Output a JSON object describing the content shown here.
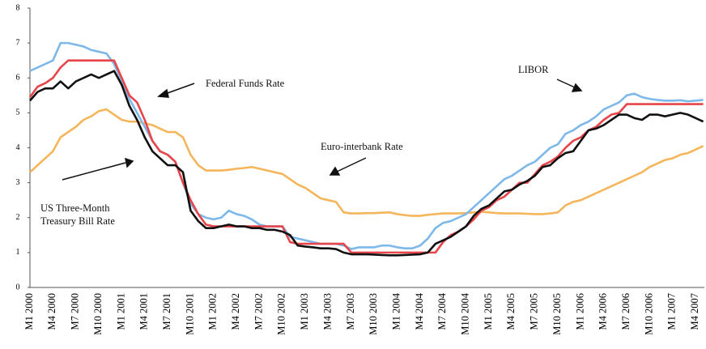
{
  "chart_data": {
    "type": "line",
    "categories": [
      "M1 2000",
      null,
      null,
      "M4 2000",
      null,
      null,
      "M7 2000",
      null,
      null,
      "M10 2000",
      null,
      null,
      "M1 2001",
      null,
      null,
      "M4 2001",
      null,
      null,
      "M7 2001",
      null,
      null,
      "M10 2001",
      null,
      null,
      "M1 2002",
      null,
      null,
      "M4 2002",
      null,
      null,
      "M7 2002",
      null,
      null,
      "M10 2002",
      null,
      null,
      "M1 2003",
      null,
      null,
      "M4 2003",
      null,
      null,
      "M7 2003",
      null,
      null,
      "M10 2003",
      null,
      null,
      "M1 2004",
      null,
      null,
      "M4 2004",
      null,
      null,
      "M7 2004",
      null,
      null,
      "M10 2004",
      null,
      null,
      "M1 2005",
      null,
      null,
      "M4 2005",
      null,
      null,
      "M7 2005",
      null,
      null,
      "M10 2005",
      null,
      null,
      "M1 2006",
      null,
      null,
      "M4 2006",
      null,
      null,
      "M7 2006",
      null,
      null,
      "M10 2006",
      null,
      null,
      "M1 2007",
      null,
      null,
      "M4 2007",
      null
    ],
    "series": [
      {
        "name": "Federal Funds Rate",
        "color": "#e8454a",
        "values": [
          5.45,
          5.75,
          5.85,
          6.0,
          6.3,
          6.5,
          6.5,
          6.5,
          6.5,
          6.5,
          6.5,
          6.5,
          6.0,
          5.5,
          5.3,
          4.8,
          4.2,
          3.9,
          3.8,
          3.6,
          3.0,
          2.5,
          2.1,
          1.8,
          1.75,
          1.75,
          1.75,
          1.75,
          1.75,
          1.75,
          1.75,
          1.75,
          1.75,
          1.75,
          1.3,
          1.25,
          1.25,
          1.25,
          1.25,
          1.25,
          1.25,
          1.25,
          1.0,
          1.0,
          1.0,
          1.0,
          1.0,
          1.0,
          1.0,
          1.0,
          1.0,
          1.0,
          1.0,
          1.0,
          1.3,
          1.5,
          1.6,
          1.75,
          1.95,
          2.2,
          2.3,
          2.5,
          2.6,
          2.8,
          3.0,
          3.0,
          3.25,
          3.5,
          3.6,
          3.75,
          4.0,
          4.2,
          4.3,
          4.5,
          4.6,
          4.8,
          4.95,
          5.0,
          5.25,
          5.25,
          5.25,
          5.25,
          5.25,
          5.25,
          5.25,
          5.25,
          5.25,
          5.25,
          5.25
        ]
      },
      {
        "name": "Euro-interbank Rate",
        "color": "#f5b55a",
        "values": [
          3.3,
          3.5,
          3.7,
          3.9,
          4.3,
          4.45,
          4.6,
          4.8,
          4.9,
          5.05,
          5.1,
          4.95,
          4.8,
          4.75,
          4.75,
          4.7,
          4.65,
          4.55,
          4.45,
          4.45,
          4.3,
          3.8,
          3.5,
          3.35,
          3.35,
          3.35,
          3.37,
          3.4,
          3.42,
          3.45,
          3.4,
          3.35,
          3.3,
          3.25,
          3.1,
          2.95,
          2.85,
          2.7,
          2.55,
          2.5,
          2.45,
          2.15,
          2.12,
          2.12,
          2.13,
          2.13,
          2.14,
          2.15,
          2.1,
          2.07,
          2.05,
          2.05,
          2.08,
          2.1,
          2.12,
          2.12,
          2.12,
          2.13,
          2.15,
          2.17,
          2.15,
          2.13,
          2.12,
          2.12,
          2.12,
          2.11,
          2.1,
          2.1,
          2.12,
          2.15,
          2.35,
          2.45,
          2.5,
          2.6,
          2.7,
          2.8,
          2.9,
          3.0,
          3.1,
          3.2,
          3.3,
          3.45,
          3.55,
          3.65,
          3.7,
          3.8,
          3.85,
          3.95,
          4.05
        ]
      },
      {
        "name": "LIBOR",
        "color": "#7db8ea",
        "values": [
          6.2,
          6.3,
          6.4,
          6.5,
          7.0,
          7.0,
          6.95,
          6.9,
          6.8,
          6.75,
          6.7,
          6.4,
          5.9,
          5.4,
          5.0,
          4.6,
          4.2,
          3.9,
          3.8,
          3.6,
          3.0,
          2.4,
          2.1,
          2.0,
          1.95,
          2.0,
          2.2,
          2.1,
          2.05,
          1.95,
          1.8,
          1.75,
          1.75,
          1.75,
          1.45,
          1.4,
          1.35,
          1.3,
          1.25,
          1.25,
          1.25,
          1.2,
          1.1,
          1.15,
          1.15,
          1.15,
          1.2,
          1.2,
          1.15,
          1.12,
          1.12,
          1.2,
          1.4,
          1.7,
          1.85,
          1.9,
          2.0,
          2.1,
          2.3,
          2.5,
          2.7,
          2.9,
          3.1,
          3.2,
          3.35,
          3.5,
          3.6,
          3.8,
          4.0,
          4.1,
          4.4,
          4.5,
          4.65,
          4.75,
          4.9,
          5.1,
          5.2,
          5.3,
          5.5,
          5.55,
          5.45,
          5.4,
          5.37,
          5.35,
          5.35,
          5.36,
          5.33,
          5.35,
          5.37
        ]
      },
      {
        "name": "US Three-Month Treasury Bill Rate",
        "color": "#111111",
        "values": [
          5.35,
          5.6,
          5.7,
          5.7,
          5.9,
          5.7,
          5.9,
          6.0,
          6.1,
          6.0,
          6.1,
          6.2,
          5.8,
          5.2,
          4.8,
          4.3,
          3.9,
          3.7,
          3.5,
          3.5,
          3.3,
          2.2,
          1.9,
          1.7,
          1.7,
          1.75,
          1.8,
          1.75,
          1.75,
          1.7,
          1.7,
          1.65,
          1.65,
          1.6,
          1.5,
          1.2,
          1.17,
          1.15,
          1.12,
          1.12,
          1.1,
          1.0,
          0.95,
          0.95,
          0.95,
          0.94,
          0.93,
          0.92,
          0.92,
          0.93,
          0.94,
          0.95,
          1.0,
          1.25,
          1.35,
          1.45,
          1.6,
          1.75,
          2.05,
          2.25,
          2.35,
          2.55,
          2.75,
          2.8,
          2.95,
          3.05,
          3.2,
          3.45,
          3.5,
          3.7,
          3.85,
          3.9,
          4.2,
          4.5,
          4.55,
          4.65,
          4.8,
          4.95,
          4.95,
          4.85,
          4.8,
          4.95,
          4.95,
          4.9,
          4.95,
          5.0,
          4.95,
          4.85,
          4.75
        ]
      }
    ],
    "ylim": [
      0,
      8
    ],
    "yticks": [
      0,
      1,
      2,
      3,
      4,
      5,
      6,
      7,
      8
    ],
    "grid": false
  }
}
